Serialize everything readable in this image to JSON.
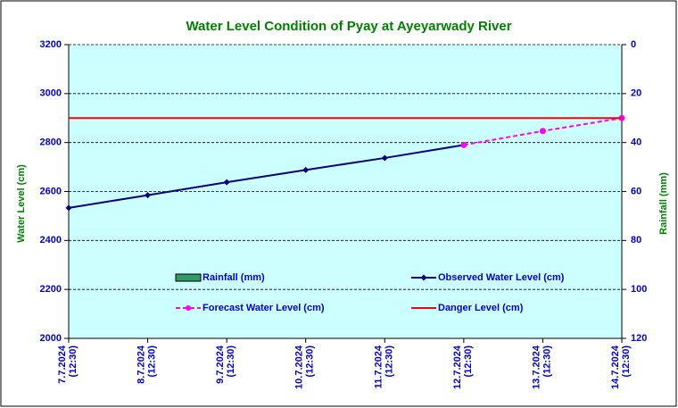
{
  "chart_data": {
    "type": "line",
    "title": "Water Level Condition of Pyay at Ayeyarwady River",
    "y_label": "Water Level (cm)",
    "y2_label": "Rainfall (mm)",
    "categories": [
      [
        "7.7.2024",
        "(12:30)"
      ],
      [
        "8.7.2024",
        "(12:30)"
      ],
      [
        "9.7.2024",
        "(12:30)"
      ],
      [
        "10.7.2024",
        "(12:30)"
      ],
      [
        "11.7.2024",
        "(12:30)"
      ],
      [
        "12.7.2024",
        "(12:30)"
      ],
      [
        "13.7.2024",
        "(12:30)"
      ],
      [
        "14.7.2024",
        "(12:30)"
      ]
    ],
    "series": [
      {
        "name": "Rainfall (mm)",
        "color": "#339966",
        "kind": "bar",
        "axis": "y2",
        "values": [
          null,
          null,
          null,
          null,
          null,
          null,
          null,
          null
        ]
      },
      {
        "name": "Observed Water Level (cm)",
        "color": "#000080",
        "kind": "line",
        "marker": "diamond",
        "values": [
          2533,
          2585,
          2638,
          2688,
          2737,
          2790,
          null,
          null
        ]
      },
      {
        "name": "Forecast Water Level (cm)",
        "color": "#ff00ff",
        "kind": "dashed",
        "marker": "circle",
        "values": [
          null,
          null,
          null,
          null,
          null,
          2790,
          2847,
          2900
        ]
      },
      {
        "name": "Danger Level (cm)",
        "color": "#ff0000",
        "kind": "line",
        "values": [
          2900,
          2900,
          2900,
          2900,
          2900,
          2900,
          2900,
          2900
        ]
      }
    ],
    "ylim": [
      2000,
      3200
    ],
    "yticks": [
      2000,
      2200,
      2400,
      2600,
      2800,
      3000,
      3200
    ],
    "y2lim": [
      120,
      0
    ],
    "y2ticks": [
      0,
      20,
      40,
      60,
      80,
      100,
      120
    ],
    "grid": true
  }
}
